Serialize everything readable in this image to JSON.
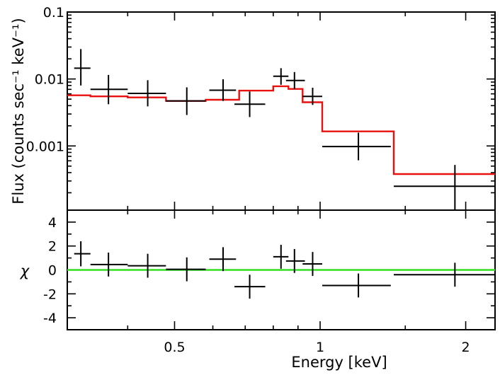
{
  "chart_data": {
    "type": "scatter",
    "x_axis": {
      "label": "Energy [keV]",
      "scale": "log",
      "range": [
        0.3,
        2.3
      ],
      "major_ticks": [
        {
          "value": 0.5,
          "label": "0.5"
        },
        {
          "value": 1,
          "label": "1"
        },
        {
          "value": 2,
          "label": "2"
        }
      ],
      "minor_ticks": [
        0.4,
        0.6,
        0.7,
        0.8,
        0.9,
        1.5
      ]
    },
    "top_panel": {
      "ylabel": "Flux (counts sec⁻¹ keV⁻¹)",
      "yscale": "log",
      "ylim": [
        0.00011,
        0.1
      ],
      "y_major_ticks": [
        {
          "value": 0.001,
          "label": "0.001"
        },
        {
          "value": 0.01,
          "label": "0.01"
        },
        {
          "value": 0.1,
          "label": "0.1"
        }
      ],
      "y_minor_ticks": [
        0.0002,
        0.0003,
        0.0004,
        0.0005,
        0.0006,
        0.0007,
        0.0008,
        0.0009,
        0.002,
        0.003,
        0.004,
        0.005,
        0.006,
        0.007,
        0.008,
        0.009,
        0.02,
        0.03,
        0.04,
        0.05,
        0.06,
        0.07,
        0.08,
        0.09
      ],
      "data": [
        {
          "x": 0.32,
          "xlo": 0.31,
          "xhi": 0.335,
          "y": 0.0145,
          "ylo": 0.008,
          "yhi": 0.028
        },
        {
          "x": 0.365,
          "xlo": 0.335,
          "xhi": 0.4,
          "y": 0.007,
          "ylo": 0.0042,
          "yhi": 0.0115
        },
        {
          "x": 0.44,
          "xlo": 0.4,
          "xhi": 0.48,
          "y": 0.0061,
          "ylo": 0.0039,
          "yhi": 0.0096
        },
        {
          "x": 0.53,
          "xlo": 0.48,
          "xhi": 0.58,
          "y": 0.0047,
          "ylo": 0.0029,
          "yhi": 0.0075
        },
        {
          "x": 0.63,
          "xlo": 0.59,
          "xhi": 0.67,
          "y": 0.0068,
          "ylo": 0.0047,
          "yhi": 0.0099
        },
        {
          "x": 0.715,
          "xlo": 0.665,
          "xhi": 0.77,
          "y": 0.0042,
          "ylo": 0.0027,
          "yhi": 0.0065
        },
        {
          "x": 0.83,
          "xlo": 0.8,
          "xhi": 0.86,
          "y": 0.011,
          "ylo": 0.0082,
          "yhi": 0.0145
        },
        {
          "x": 0.885,
          "xlo": 0.85,
          "xhi": 0.93,
          "y": 0.0095,
          "ylo": 0.0071,
          "yhi": 0.0127
        },
        {
          "x": 0.965,
          "xlo": 0.92,
          "xhi": 1.01,
          "y": 0.0055,
          "ylo": 0.0041,
          "yhi": 0.0074
        },
        {
          "x": 1.2,
          "xlo": 1.01,
          "xhi": 1.4,
          "y": 0.00098,
          "ylo": 0.00061,
          "yhi": 0.00158
        },
        {
          "x": 1.9,
          "xlo": 1.42,
          "xhi": 2.3,
          "y": 0.00025,
          "ylo": 0.00011,
          "yhi": 0.00052
        }
      ],
      "model_step": [
        [
          0.3,
          0.0057
        ],
        [
          0.335,
          0.0057
        ],
        [
          0.335,
          0.0055
        ],
        [
          0.4,
          0.0055
        ],
        [
          0.4,
          0.0053
        ],
        [
          0.48,
          0.0053
        ],
        [
          0.48,
          0.0047
        ],
        [
          0.58,
          0.0047
        ],
        [
          0.58,
          0.0049
        ],
        [
          0.68,
          0.0049
        ],
        [
          0.68,
          0.0067
        ],
        [
          0.8,
          0.0067
        ],
        [
          0.8,
          0.0078
        ],
        [
          0.86,
          0.0078
        ],
        [
          0.86,
          0.0071
        ],
        [
          0.92,
          0.0071
        ],
        [
          0.92,
          0.0045
        ],
        [
          1.01,
          0.0045
        ],
        [
          1.01,
          0.00165
        ],
        [
          1.42,
          0.00165
        ],
        [
          1.42,
          0.00038
        ],
        [
          2.3,
          0.00038
        ]
      ],
      "model_color": "#e8110f"
    },
    "bottom_panel": {
      "ylabel": "χ",
      "ylim": [
        -5,
        5
      ],
      "y_major_ticks": [
        {
          "value": -4,
          "label": "-4"
        },
        {
          "value": -2,
          "label": "-2"
        },
        {
          "value": 0,
          "label": "0"
        },
        {
          "value": 2,
          "label": "2"
        },
        {
          "value": 4,
          "label": "4"
        }
      ],
      "y_minor_ticks": [
        -5,
        -3,
        -1,
        1,
        3,
        5
      ],
      "data": [
        {
          "x": 0.32,
          "xlo": 0.31,
          "xhi": 0.335,
          "y": 1.35,
          "ylo": 0.3,
          "yhi": 2.4
        },
        {
          "x": 0.365,
          "xlo": 0.335,
          "xhi": 0.4,
          "y": 0.45,
          "ylo": -0.55,
          "yhi": 1.45
        },
        {
          "x": 0.44,
          "xlo": 0.4,
          "xhi": 0.48,
          "y": 0.35,
          "ylo": -0.65,
          "yhi": 1.35
        },
        {
          "x": 0.53,
          "xlo": 0.48,
          "xhi": 0.58,
          "y": 0.05,
          "ylo": -0.95,
          "yhi": 1.05
        },
        {
          "x": 0.63,
          "xlo": 0.59,
          "xhi": 0.67,
          "y": 0.9,
          "ylo": -0.1,
          "yhi": 1.9
        },
        {
          "x": 0.715,
          "xlo": 0.665,
          "xhi": 0.77,
          "y": -1.4,
          "ylo": -2.4,
          "yhi": -0.4
        },
        {
          "x": 0.83,
          "xlo": 0.8,
          "xhi": 0.86,
          "y": 1.1,
          "ylo": 0.1,
          "yhi": 2.1
        },
        {
          "x": 0.885,
          "xlo": 0.85,
          "xhi": 0.93,
          "y": 0.75,
          "ylo": -0.25,
          "yhi": 1.75
        },
        {
          "x": 0.965,
          "xlo": 0.92,
          "xhi": 1.01,
          "y": 0.5,
          "ylo": -0.5,
          "yhi": 1.5
        },
        {
          "x": 1.2,
          "xlo": 1.01,
          "xhi": 1.4,
          "y": -1.3,
          "ylo": -2.3,
          "yhi": -0.3
        },
        {
          "x": 1.9,
          "xlo": 1.42,
          "xhi": 2.3,
          "y": -0.4,
          "ylo": -1.4,
          "yhi": 0.6
        }
      ],
      "zero_line": 0,
      "zero_line_color": "#33dd22"
    }
  }
}
